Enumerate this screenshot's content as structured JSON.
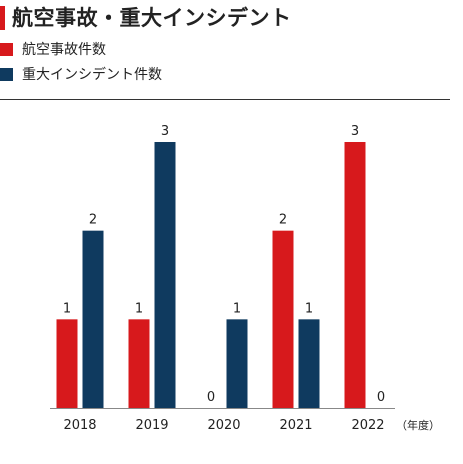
{
  "chart_data": {
    "type": "bar",
    "title": "航空事故・重大インシデント",
    "categories": [
      "2018",
      "2019",
      "2020",
      "2021",
      "2022"
    ],
    "x_unit": "（年度）",
    "ylim": [
      0,
      3
    ],
    "grid": false,
    "legend_position": "top-left",
    "series": [
      {
        "name": "航空事故件数",
        "color": "#d7191c",
        "values": [
          1,
          1,
          0,
          2,
          3
        ]
      },
      {
        "name": "重大インシデント件数",
        "color": "#0f3a5f",
        "values": [
          2,
          3,
          1,
          1,
          0
        ]
      }
    ]
  },
  "colors": {
    "accent": "#d7191c",
    "axis": "#888888"
  }
}
